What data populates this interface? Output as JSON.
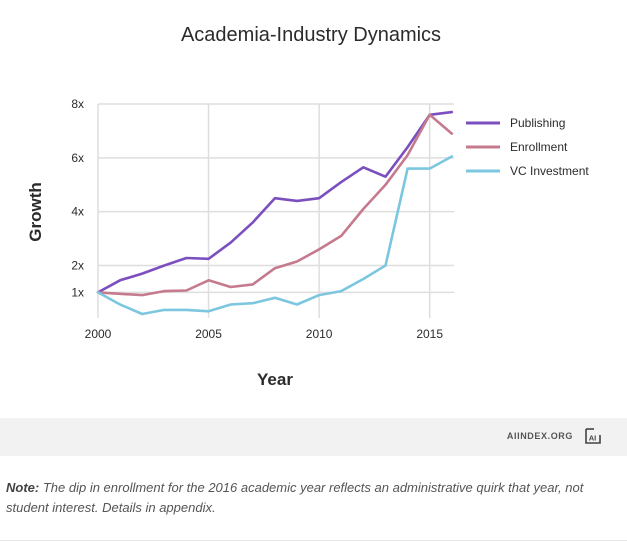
{
  "chart_data": {
    "type": "line",
    "title": "Academia-Industry Dynamics",
    "xlabel": "Year",
    "ylabel": "Growth",
    "x": [
      2000,
      2001,
      2002,
      2003,
      2004,
      2005,
      2006,
      2007,
      2008,
      2009,
      2010,
      2011,
      2012,
      2013,
      2014,
      2015,
      2016
    ],
    "xlim": [
      2000,
      2016.1
    ],
    "xticks": [
      2000,
      2005,
      2010,
      2015
    ],
    "xtick_labels": [
      "2000",
      "2005",
      "2010",
      "2015"
    ],
    "ylim": [
      0.05,
      8
    ],
    "yticks": [
      1,
      2,
      4,
      6,
      8
    ],
    "ytick_labels": [
      "1x",
      "2x",
      "4x",
      "6x",
      "8x"
    ],
    "grid": true,
    "legend_position": "right",
    "series": [
      {
        "name": "Publishing",
        "color": "#7c4fbf",
        "values": [
          1.0,
          1.45,
          1.7,
          2.0,
          2.28,
          2.25,
          2.85,
          3.6,
          4.5,
          4.4,
          4.5,
          5.1,
          5.65,
          5.3,
          6.4,
          7.6,
          7.7
        ]
      },
      {
        "name": "Enrollment",
        "color": "#c57a8d",
        "values": [
          1.0,
          0.95,
          0.9,
          1.05,
          1.07,
          1.45,
          1.2,
          1.3,
          1.9,
          2.15,
          2.6,
          3.1,
          4.1,
          5.0,
          6.1,
          7.6,
          6.9
        ]
      },
      {
        "name": "VC Investment",
        "color": "#7dc6df",
        "values": [
          1.0,
          0.55,
          0.2,
          0.35,
          0.35,
          0.3,
          0.55,
          0.6,
          0.8,
          0.55,
          0.9,
          1.05,
          1.5,
          2.0,
          5.6,
          5.6,
          6.05
        ]
      }
    ]
  },
  "footer": {
    "brand": "AIINDEX.ORG",
    "logo_text": "AI"
  },
  "note": {
    "label": "Note:",
    "text": "The dip in enrollment for the 2016 academic year reflects an administrative quirk that year, not student interest. Details in appendix."
  }
}
